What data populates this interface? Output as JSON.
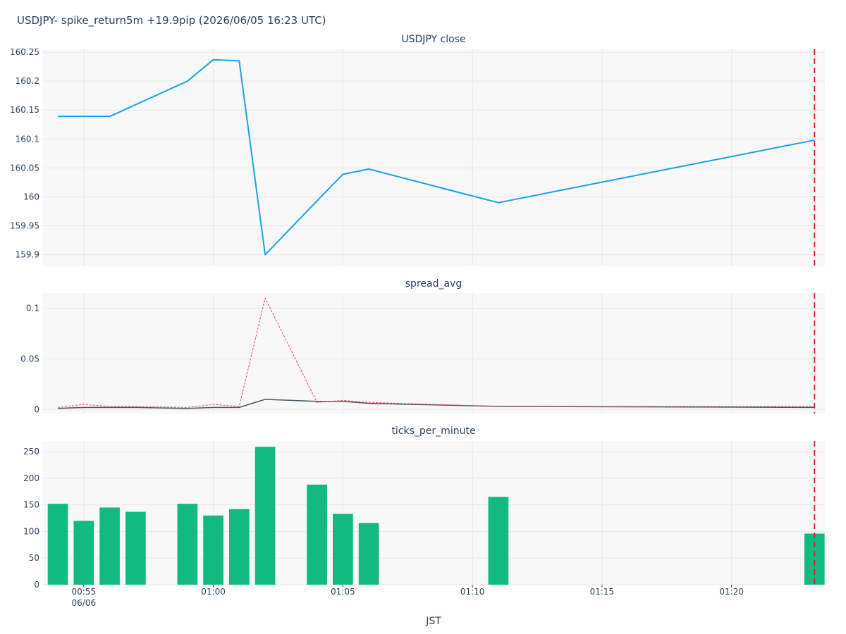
{
  "title": "USDJPY- spike_return5m +19.9pip (2026/06/05 16:23 UTC)",
  "xlabel": "JST",
  "x_tick_labels": [
    "00:55",
    "01:00",
    "01:05",
    "01:10",
    "01:15",
    "01:20"
  ],
  "x_date_label": "06/06",
  "colors": {
    "close_line": "#1ba3e0",
    "spread_solid": "#4a5568",
    "spread_dotted": "#e74c3c",
    "bars": "#12b981",
    "marker": "#d62728",
    "plot_bg": "#f8f8f9",
    "grid": "#e6e9ef"
  },
  "chart_data": [
    {
      "type": "line",
      "title": "USDJPY close",
      "x_unit": "minutes since 00:54 JST",
      "x_range": [
        -0.6,
        29.6
      ],
      "ylim": [
        159.88,
        160.255
      ],
      "y_ticks": [
        159.9,
        159.95,
        160,
        160.05,
        160.1,
        160.15,
        160.2,
        160.25
      ],
      "y_tick_labels": [
        "159.9",
        "159.95",
        "160",
        "160.05",
        "160.1",
        "160.15",
        "160.2",
        "160.25"
      ],
      "series": [
        {
          "x": [
            0,
            2,
            5,
            6,
            7,
            8,
            10,
            11,
            12,
            17,
            29.2
          ],
          "y": [
            160.139,
            160.139,
            160.2,
            160.237,
            160.235,
            159.9,
            159.993,
            160.039,
            160.048,
            159.99,
            160.098
          ]
        }
      ],
      "marker_x": 29.2,
      "grid": true
    },
    {
      "type": "line",
      "title": "spread_avg",
      "x_range": [
        -0.6,
        29.6
      ],
      "ylim": [
        -0.004,
        0.115
      ],
      "y_ticks": [
        0,
        0.05,
        0.1
      ],
      "y_tick_labels": [
        "0",
        "0.05",
        "0.1"
      ],
      "series": [
        {
          "style": "solid",
          "x": [
            0,
            1,
            2,
            3,
            5,
            6,
            7,
            8,
            10,
            11,
            12,
            17,
            29.2
          ],
          "y": [
            0.001,
            0.002,
            0.002,
            0.002,
            0.001,
            0.002,
            0.002,
            0.01,
            0.008,
            0.008,
            0.006,
            0.003,
            0.002
          ]
        },
        {
          "style": "dotted",
          "x": [
            0,
            1,
            2,
            3,
            5,
            6,
            7,
            8,
            10,
            11,
            12,
            17,
            29.2
          ],
          "y": [
            0.002,
            0.005,
            0.003,
            0.003,
            0.002,
            0.005,
            0.003,
            0.11,
            0.007,
            0.009,
            0.007,
            0.003,
            0.003
          ]
        }
      ],
      "marker_x": 29.2,
      "grid": true
    },
    {
      "type": "bar",
      "title": "ticks_per_minute",
      "x_range": [
        -0.6,
        29.6
      ],
      "ylim": [
        0,
        270
      ],
      "y_ticks": [
        0,
        50,
        100,
        150,
        200,
        250
      ],
      "y_tick_labels": [
        "0",
        "50",
        "100",
        "150",
        "200",
        "250"
      ],
      "x": [
        0,
        1,
        2,
        3,
        5,
        6,
        7,
        8,
        10,
        11,
        12,
        17,
        29.2
      ],
      "values": [
        152,
        120,
        145,
        137,
        152,
        130,
        142,
        259,
        188,
        133,
        116,
        165,
        96
      ],
      "marker_x": 29.2,
      "grid": true
    }
  ]
}
